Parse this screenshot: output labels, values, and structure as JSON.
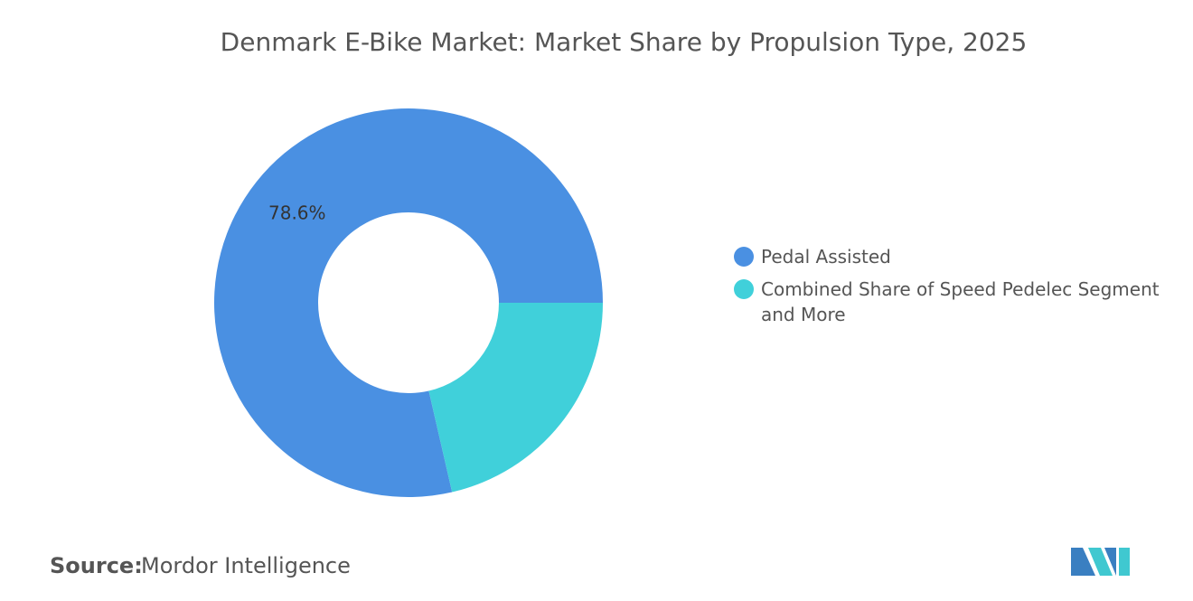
{
  "chart_data": {
    "type": "donut",
    "title": "Denmark E-Bike Market: Market Share by Propulsion Type, 2025",
    "categories": [
      "Pedal Assisted",
      "Combined Share of Speed Pedelec Segment and More"
    ],
    "values": [
      78.6,
      21.4
    ],
    "value_labels": [
      "78.6%",
      null
    ],
    "colors": [
      "#4a90e2",
      "#40d0da"
    ],
    "legend": "right"
  },
  "footer": {
    "source_label": "Source:",
    "source": "Mordor Intelligence"
  }
}
